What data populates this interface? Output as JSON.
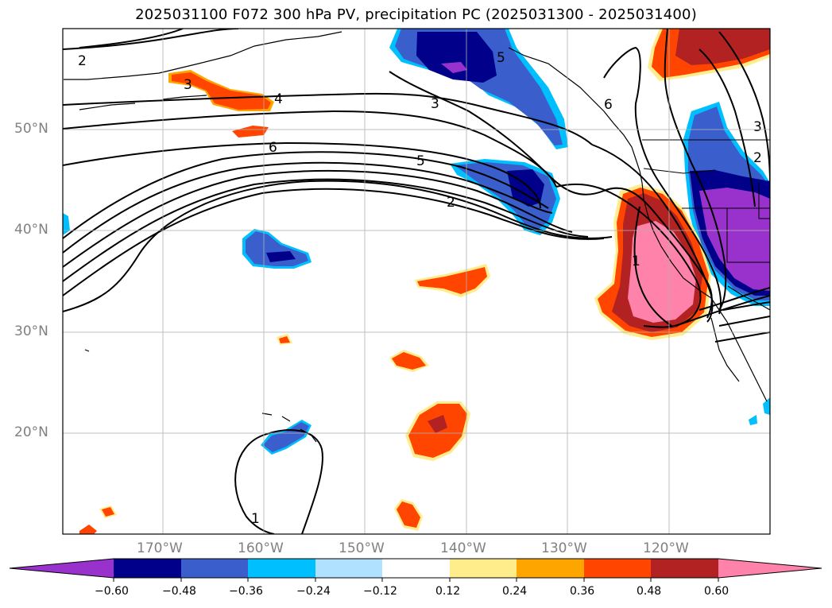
{
  "title": "2025031100 F072 300 hPa PV, precipitation PC (2025031300 - 2025031400)",
  "lat_labels": [
    "50°N",
    "40°N",
    "30°N",
    "20°N"
  ],
  "lon_labels": [
    "170°W",
    "160°W",
    "150°W",
    "140°W",
    "130°W",
    "120°W"
  ],
  "colorbar": {
    "ticks": [
      "−0.60",
      "−0.48",
      "−0.36",
      "−0.24",
      "−0.12",
      "0.12",
      "0.24",
      "0.36",
      "0.48",
      "0.60"
    ],
    "colors": {
      "under": "#9932CC",
      "c1": "#00008B",
      "c2": "#3A5FCD",
      "c3": "#00BFFF",
      "c4": "#B0E2FF",
      "c5": "#FFFFFF",
      "c6": "#FFEC8B",
      "c7": "#FFA500",
      "c8": "#FF4500",
      "c9": "#B22222",
      "over": "#FF82AB"
    }
  },
  "contour_labels": [
    "2",
    "3",
    "4",
    "6",
    "5",
    "3",
    "2",
    "6",
    "5",
    "3",
    "2",
    "1",
    "1"
  ]
}
